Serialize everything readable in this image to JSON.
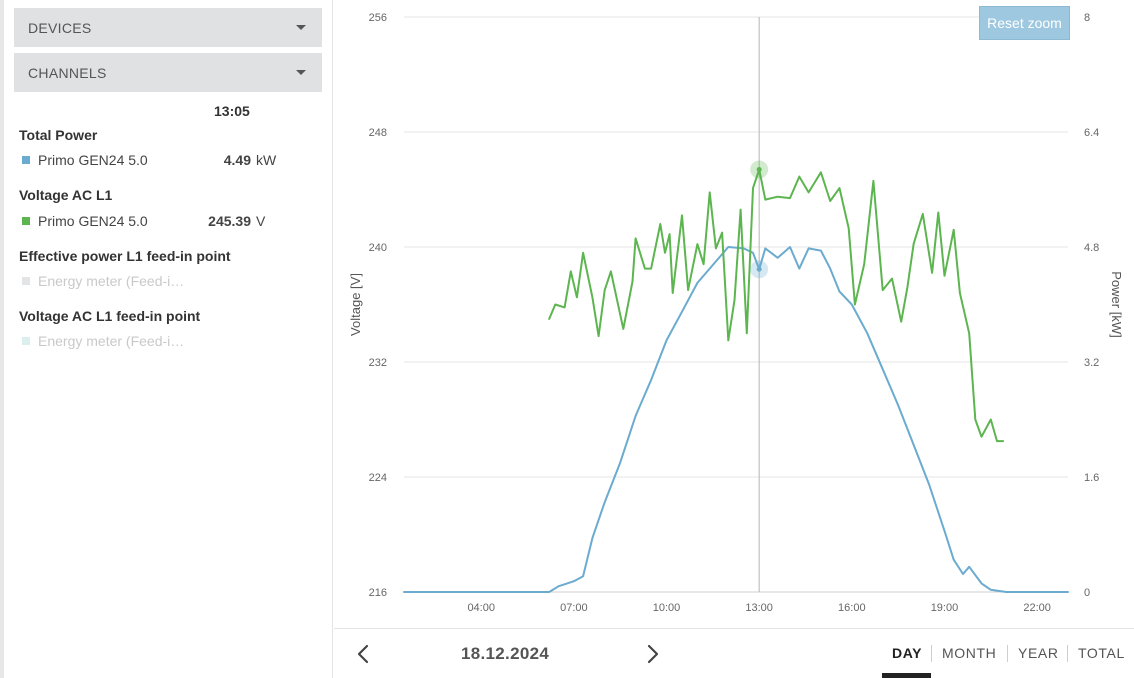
{
  "panel": {
    "devices_label": "DEVICES",
    "channels_label": "CHANNELS",
    "time": "13:05",
    "groups": [
      {
        "title": "Total Power",
        "device": "Primo GEN24 5.0",
        "value": "4.49",
        "unit": "kW",
        "color": "#6aabcf",
        "active": true
      },
      {
        "title": "Voltage AC L1",
        "device": "Primo GEN24 5.0",
        "value": "245.39",
        "unit": "V",
        "color": "#5cb54f",
        "active": true
      },
      {
        "title": "Effective power L1 feed-in point",
        "device": "Energy meter (Feed-i…",
        "value": "",
        "unit": "",
        "color": "#e2e4e6",
        "active": false
      },
      {
        "title": "Voltage AC L1 feed-in point",
        "device": "Energy meter (Feed-i…",
        "value": "",
        "unit": "",
        "color": "#dcefef",
        "active": false
      }
    ]
  },
  "chart": {
    "reset_zoom_label": "Reset zoom"
  },
  "chart_data": {
    "type": "line",
    "x_unit": "hour of day",
    "x_range": [
      1.5,
      23
    ],
    "x_ticks": [
      "04:00",
      "07:00",
      "10:00",
      "13:00",
      "16:00",
      "19:00",
      "22:00"
    ],
    "y_left": {
      "label": "Voltage [V]",
      "range": [
        216,
        256
      ],
      "ticks": [
        "216",
        "224",
        "232",
        "240",
        "248",
        "256"
      ]
    },
    "y_right": {
      "label": "Power [kW]",
      "range": [
        0,
        8
      ],
      "ticks": [
        "0",
        "1.6",
        "3.2",
        "4.8",
        "6.4",
        "8"
      ]
    },
    "grid": true,
    "crosshair_x": 13.0,
    "series": [
      {
        "axis": "right",
        "color": "#6aabcf",
        "points": [
          [
            1.5,
            0
          ],
          [
            6.2,
            0
          ],
          [
            6.5,
            0.08
          ],
          [
            7.0,
            0.15
          ],
          [
            7.3,
            0.22
          ],
          [
            7.6,
            0.75
          ],
          [
            8.0,
            1.25
          ],
          [
            8.5,
            1.8
          ],
          [
            9.0,
            2.45
          ],
          [
            9.5,
            2.95
          ],
          [
            10.0,
            3.5
          ],
          [
            10.5,
            3.9
          ],
          [
            11.0,
            4.3
          ],
          [
            11.5,
            4.55
          ],
          [
            12.0,
            4.8
          ],
          [
            12.5,
            4.78
          ],
          [
            12.8,
            4.72
          ],
          [
            13.0,
            4.49
          ],
          [
            13.2,
            4.78
          ],
          [
            13.6,
            4.65
          ],
          [
            14.0,
            4.8
          ],
          [
            14.3,
            4.5
          ],
          [
            14.6,
            4.78
          ],
          [
            15.0,
            4.75
          ],
          [
            15.3,
            4.5
          ],
          [
            15.6,
            4.18
          ],
          [
            16.0,
            4.0
          ],
          [
            16.5,
            3.6
          ],
          [
            17.0,
            3.1
          ],
          [
            17.5,
            2.6
          ],
          [
            18.0,
            2.05
          ],
          [
            18.5,
            1.5
          ],
          [
            19.0,
            0.85
          ],
          [
            19.3,
            0.45
          ],
          [
            19.6,
            0.25
          ],
          [
            19.8,
            0.35
          ],
          [
            20.2,
            0.12
          ],
          [
            20.5,
            0.03
          ],
          [
            21.0,
            0
          ],
          [
            23.0,
            0
          ]
        ]
      },
      {
        "axis": "left",
        "color": "#5cb54f",
        "points": [
          [
            6.2,
            235.0
          ],
          [
            6.4,
            236.0
          ],
          [
            6.7,
            235.8
          ],
          [
            6.9,
            238.3
          ],
          [
            7.1,
            236.5
          ],
          [
            7.3,
            239.6
          ],
          [
            7.6,
            236.5
          ],
          [
            7.8,
            233.8
          ],
          [
            8.0,
            237.0
          ],
          [
            8.2,
            238.3
          ],
          [
            8.6,
            234.3
          ],
          [
            8.9,
            237.6
          ],
          [
            9.0,
            240.6
          ],
          [
            9.3,
            238.5
          ],
          [
            9.5,
            238.5
          ],
          [
            9.8,
            241.6
          ],
          [
            9.95,
            239.6
          ],
          [
            10.1,
            240.9
          ],
          [
            10.2,
            236.8
          ],
          [
            10.5,
            242.2
          ],
          [
            10.7,
            237.0
          ],
          [
            11.0,
            240.2
          ],
          [
            11.2,
            238.8
          ],
          [
            11.4,
            243.8
          ],
          [
            11.6,
            239.9
          ],
          [
            11.8,
            241.0
          ],
          [
            12.0,
            233.5
          ],
          [
            12.2,
            236.3
          ],
          [
            12.4,
            242.6
          ],
          [
            12.6,
            234.0
          ],
          [
            12.8,
            244.1
          ],
          [
            13.0,
            245.39
          ],
          [
            13.2,
            243.3
          ],
          [
            13.6,
            243.5
          ],
          [
            14.0,
            243.4
          ],
          [
            14.3,
            244.9
          ],
          [
            14.6,
            243.8
          ],
          [
            15.0,
            245.2
          ],
          [
            15.3,
            243.2
          ],
          [
            15.6,
            244.1
          ],
          [
            15.9,
            241.3
          ],
          [
            16.1,
            236.0
          ],
          [
            16.4,
            238.8
          ],
          [
            16.7,
            244.6
          ],
          [
            17.0,
            237.0
          ],
          [
            17.3,
            237.8
          ],
          [
            17.6,
            234.8
          ],
          [
            17.8,
            237.2
          ],
          [
            18.0,
            240.2
          ],
          [
            18.3,
            242.3
          ],
          [
            18.6,
            238.2
          ],
          [
            18.8,
            242.4
          ],
          [
            19.0,
            238.0
          ],
          [
            19.3,
            241.2
          ],
          [
            19.5,
            236.8
          ],
          [
            19.8,
            234.0
          ],
          [
            20.0,
            228.0
          ],
          [
            20.2,
            226.8
          ],
          [
            20.5,
            228.0
          ],
          [
            20.7,
            226.5
          ],
          [
            20.9,
            226.5
          ]
        ]
      }
    ],
    "highlight_points": [
      {
        "x": 13.0,
        "axis": "left",
        "value": 245.39
      },
      {
        "x": 13.0,
        "axis": "right",
        "value": 4.49
      }
    ]
  },
  "footer": {
    "date": "18.12.2024",
    "periods": [
      {
        "label": "DAY",
        "active": true
      },
      {
        "label": "MONTH",
        "active": false
      },
      {
        "label": "YEAR",
        "active": false
      },
      {
        "label": "TOTAL",
        "active": false
      }
    ]
  }
}
